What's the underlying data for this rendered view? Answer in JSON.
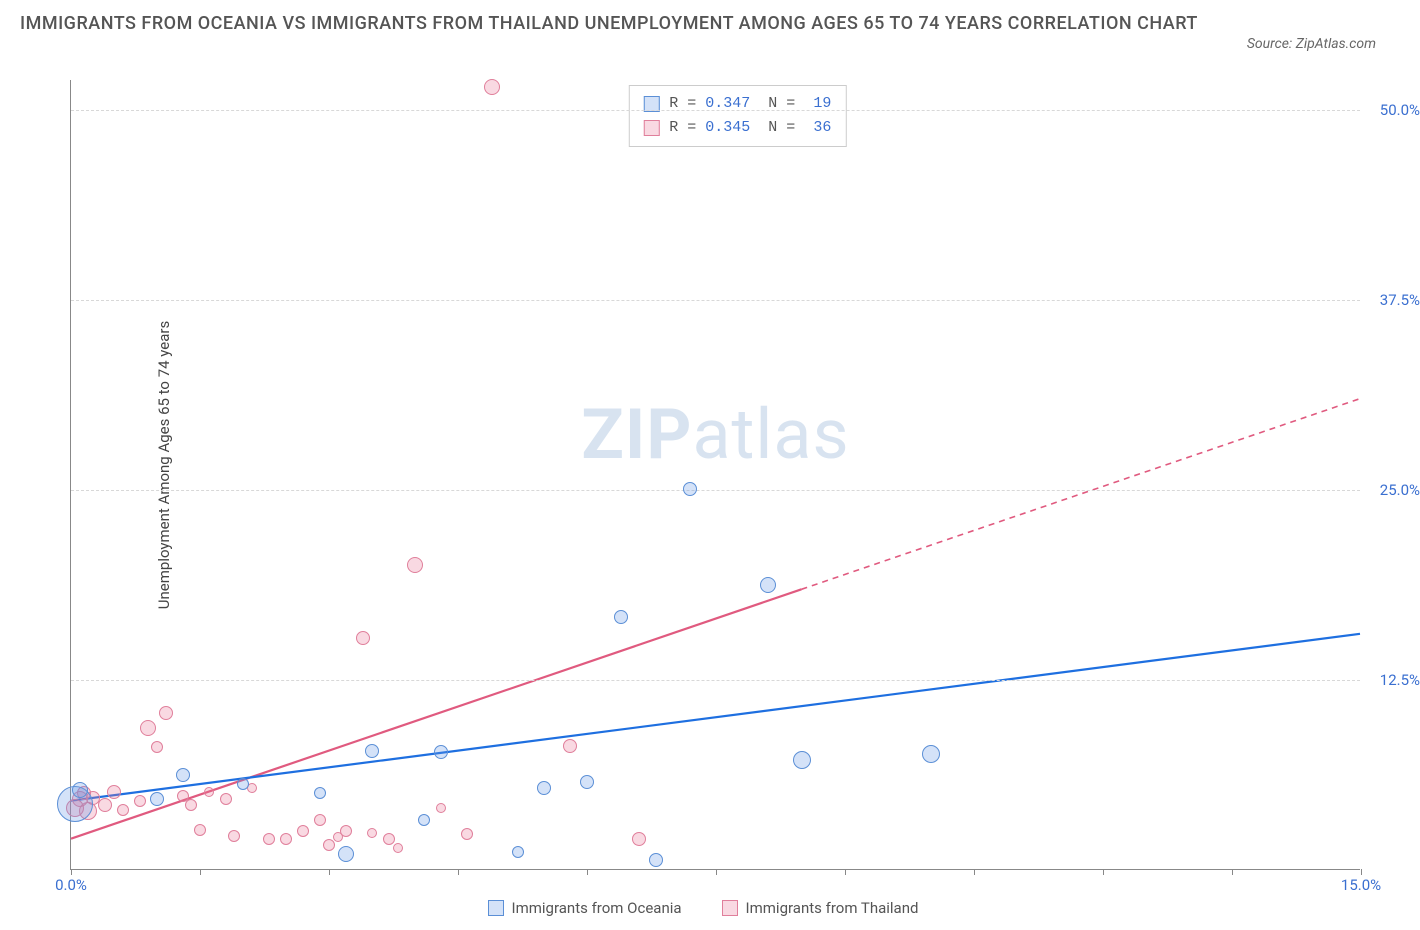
{
  "title": "IMMIGRANTS FROM OCEANIA VS IMMIGRANTS FROM THAILAND UNEMPLOYMENT AMONG AGES 65 TO 74 YEARS CORRELATION CHART",
  "source": "Source: ZipAtlas.com",
  "y_axis_label": "Unemployment Among Ages 65 to 74 years",
  "watermark": {
    "bold": "ZIP",
    "light": "atlas"
  },
  "colors": {
    "series_a_fill": "rgba(100,150,230,0.28)",
    "series_a_stroke": "#5b8fd6",
    "series_b_fill": "rgba(235,120,150,0.28)",
    "series_b_stroke": "#e07f9b",
    "trend_a": "#1e6fe0",
    "trend_b": "#e05a7f",
    "tick_label": "#3a6fd0",
    "legend_text": "#555"
  },
  "chart": {
    "type": "scatter",
    "xlim": [
      0,
      15
    ],
    "ylim": [
      0,
      52
    ],
    "x_ticks": [
      0,
      1.5,
      3,
      4.5,
      6,
      7.5,
      9,
      10.5,
      12,
      13.5,
      15
    ],
    "x_tick_labels": [
      {
        "x": 0,
        "label": "0.0%"
      },
      {
        "x": 15,
        "label": "15.0%"
      }
    ],
    "y_ticks": [
      {
        "y": 12.5,
        "label": "12.5%"
      },
      {
        "y": 25.0,
        "label": "25.0%"
      },
      {
        "y": 37.5,
        "label": "37.5%"
      },
      {
        "y": 50.0,
        "label": "50.0%"
      }
    ],
    "legend_stats": [
      {
        "series": "A",
        "R": "0.347",
        "N": "19"
      },
      {
        "series": "B",
        "R": "0.345",
        "N": "36"
      }
    ],
    "bottom_legend": [
      {
        "series": "A",
        "label": "Immigrants from Oceania"
      },
      {
        "series": "B",
        "label": "Immigrants from Thailand"
      }
    ],
    "trend_lines": {
      "A": {
        "x1": 0,
        "y1": 4.5,
        "x2": 15,
        "y2": 15.5,
        "solid_until_x": 15
      },
      "B": {
        "x1": 0,
        "y1": 2.0,
        "x2": 15,
        "y2": 31.0,
        "solid_until_x": 8.5
      }
    },
    "points_A": [
      {
        "x": 0.05,
        "y": 4.3,
        "r": 18
      },
      {
        "x": 0.1,
        "y": 5.2,
        "r": 8
      },
      {
        "x": 1.0,
        "y": 4.6,
        "r": 7
      },
      {
        "x": 1.3,
        "y": 6.2,
        "r": 7
      },
      {
        "x": 2.0,
        "y": 5.6,
        "r": 6
      },
      {
        "x": 2.9,
        "y": 5.0,
        "r": 6
      },
      {
        "x": 3.2,
        "y": 1.0,
        "r": 8
      },
      {
        "x": 3.5,
        "y": 7.8,
        "r": 7
      },
      {
        "x": 4.3,
        "y": 7.7,
        "r": 7
      },
      {
        "x": 5.2,
        "y": 1.1,
        "r": 6
      },
      {
        "x": 5.5,
        "y": 5.3,
        "r": 7
      },
      {
        "x": 6.0,
        "y": 5.7,
        "r": 7
      },
      {
        "x": 6.4,
        "y": 16.6,
        "r": 7
      },
      {
        "x": 6.8,
        "y": 0.6,
        "r": 7
      },
      {
        "x": 7.2,
        "y": 25.0,
        "r": 7
      },
      {
        "x": 8.1,
        "y": 18.7,
        "r": 8
      },
      {
        "x": 8.5,
        "y": 7.2,
        "r": 9
      },
      {
        "x": 10.0,
        "y": 7.6,
        "r": 9
      },
      {
        "x": 4.1,
        "y": 3.2,
        "r": 6
      }
    ],
    "points_B": [
      {
        "x": 0.05,
        "y": 4.0,
        "r": 9
      },
      {
        "x": 0.1,
        "y": 4.6,
        "r": 8
      },
      {
        "x": 0.15,
        "y": 5.0,
        "r": 7
      },
      {
        "x": 0.2,
        "y": 3.8,
        "r": 9
      },
      {
        "x": 0.25,
        "y": 4.7,
        "r": 7
      },
      {
        "x": 0.4,
        "y": 4.2,
        "r": 7
      },
      {
        "x": 0.5,
        "y": 5.1,
        "r": 7
      },
      {
        "x": 0.6,
        "y": 3.9,
        "r": 6
      },
      {
        "x": 0.8,
        "y": 4.5,
        "r": 6
      },
      {
        "x": 0.9,
        "y": 9.3,
        "r": 8
      },
      {
        "x": 1.0,
        "y": 8.0,
        "r": 6
      },
      {
        "x": 1.1,
        "y": 10.3,
        "r": 7
      },
      {
        "x": 1.3,
        "y": 4.8,
        "r": 6
      },
      {
        "x": 1.4,
        "y": 4.2,
        "r": 6
      },
      {
        "x": 1.5,
        "y": 2.6,
        "r": 6
      },
      {
        "x": 1.6,
        "y": 5.1,
        "r": 5
      },
      {
        "x": 1.8,
        "y": 4.6,
        "r": 6
      },
      {
        "x": 1.9,
        "y": 2.2,
        "r": 6
      },
      {
        "x": 2.1,
        "y": 5.3,
        "r": 5
      },
      {
        "x": 2.3,
        "y": 2.0,
        "r": 6
      },
      {
        "x": 2.5,
        "y": 2.0,
        "r": 6
      },
      {
        "x": 2.7,
        "y": 2.5,
        "r": 6
      },
      {
        "x": 2.9,
        "y": 3.2,
        "r": 6
      },
      {
        "x": 3.0,
        "y": 1.6,
        "r": 6
      },
      {
        "x": 3.1,
        "y": 2.1,
        "r": 5
      },
      {
        "x": 3.2,
        "y": 2.5,
        "r": 6
      },
      {
        "x": 3.4,
        "y": 15.2,
        "r": 7
      },
      {
        "x": 3.5,
        "y": 2.4,
        "r": 5
      },
      {
        "x": 3.7,
        "y": 2.0,
        "r": 6
      },
      {
        "x": 3.8,
        "y": 1.4,
        "r": 5
      },
      {
        "x": 4.0,
        "y": 20.0,
        "r": 8
      },
      {
        "x": 4.6,
        "y": 2.3,
        "r": 6
      },
      {
        "x": 4.9,
        "y": 51.5,
        "r": 8
      },
      {
        "x": 5.8,
        "y": 8.1,
        "r": 7
      },
      {
        "x": 6.6,
        "y": 2.0,
        "r": 7
      },
      {
        "x": 4.3,
        "y": 4.0,
        "r": 5
      }
    ]
  }
}
